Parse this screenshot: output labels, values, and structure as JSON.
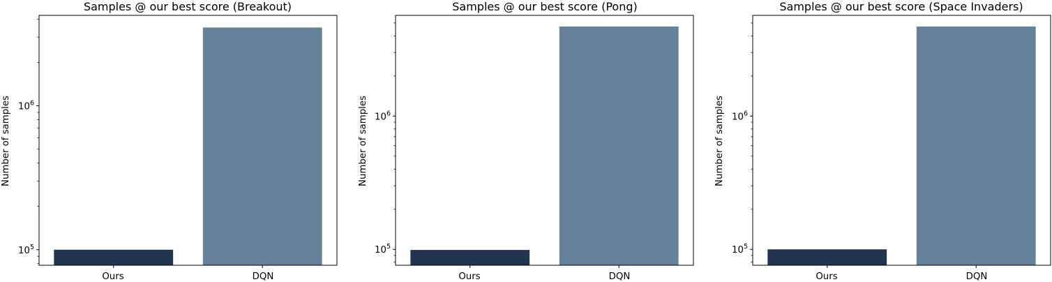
{
  "colors": {
    "ours": "#22344f",
    "dqn": "#66829b",
    "axis": "#000000",
    "background": "#ffffff"
  },
  "chart_data": [
    {
      "type": "bar",
      "title": "Samples @ our best score (Breakout)",
      "xlabel": "",
      "ylabel": "Number of samples",
      "yscale": "log",
      "ylim": [
        78000,
        4250000
      ],
      "categories": [
        "Ours",
        "DQN"
      ],
      "values": [
        100000,
        3500000
      ],
      "bar_colors": [
        "#22344f",
        "#66829b"
      ],
      "major_ticks": [
        {
          "value": 100000,
          "base": "10",
          "exp": "5"
        },
        {
          "value": 1000000,
          "base": "10",
          "exp": "6"
        }
      ],
      "grid": false
    },
    {
      "type": "bar",
      "title": "Samples @ our best score (Pong)",
      "xlabel": "",
      "ylabel": "Number of samples",
      "yscale": "log",
      "ylim": [
        76000,
        5700000
      ],
      "categories": [
        "Ours",
        "DQN"
      ],
      "values": [
        99000,
        4700000
      ],
      "bar_colors": [
        "#22344f",
        "#66829b"
      ],
      "major_ticks": [
        {
          "value": 100000,
          "base": "10",
          "exp": "5"
        },
        {
          "value": 1000000,
          "base": "10",
          "exp": "6"
        }
      ],
      "grid": false
    },
    {
      "type": "bar",
      "title": "Samples @ our best score (Space Invaders)",
      "xlabel": "",
      "ylabel": "Number of samples",
      "yscale": "log",
      "ylim": [
        76000,
        5700000
      ],
      "categories": [
        "Ours",
        "DQN"
      ],
      "values": [
        100000,
        4700000
      ],
      "bar_colors": [
        "#22344f",
        "#66829b"
      ],
      "major_ticks": [
        {
          "value": 100000,
          "base": "10",
          "exp": "5"
        },
        {
          "value": 1000000,
          "base": "10",
          "exp": "6"
        }
      ],
      "grid": false
    }
  ]
}
